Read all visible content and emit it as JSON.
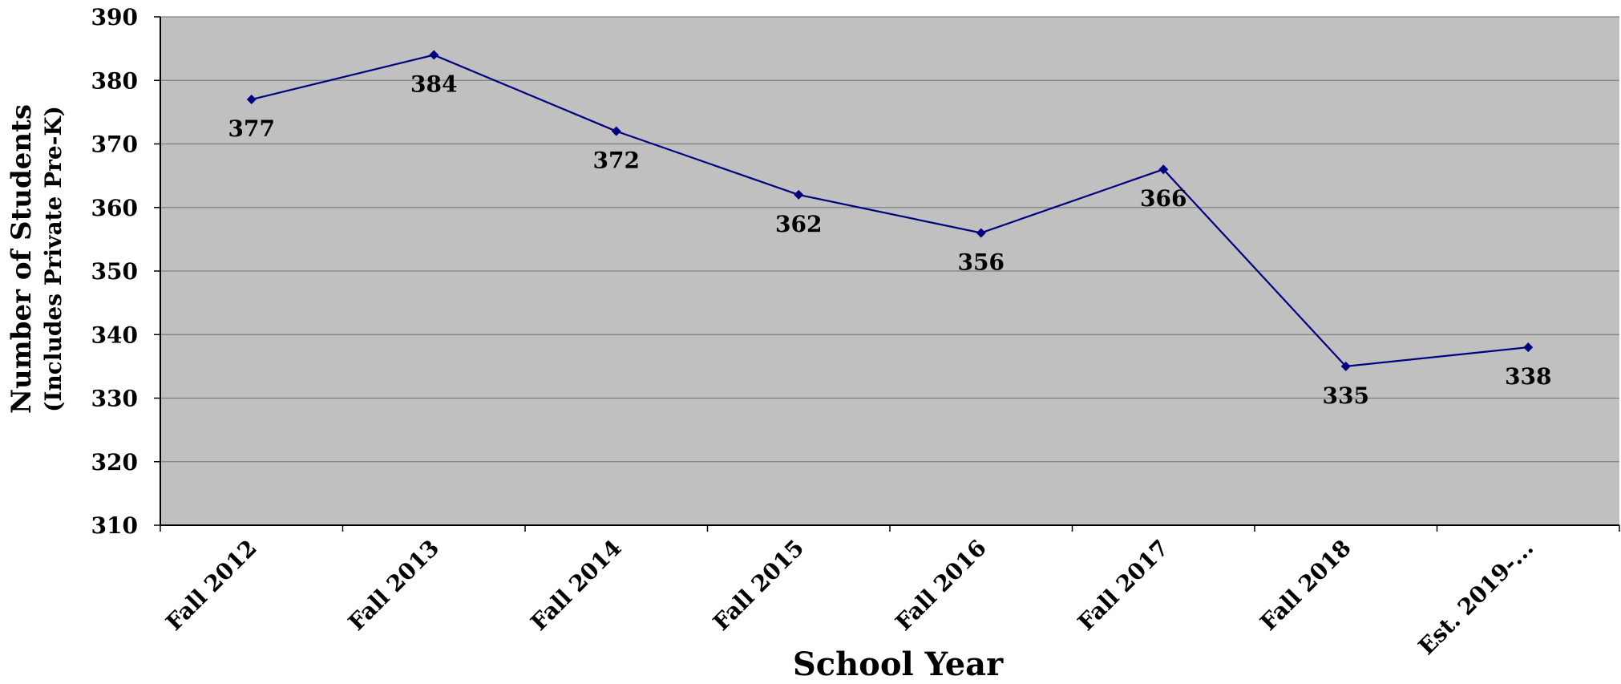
{
  "chart_data": {
    "type": "line",
    "categories": [
      "Fall 2012",
      "Fall 2013",
      "Fall 2014",
      "Fall 2015",
      "Fall 2016",
      "Fall 2017",
      "Fall 2018",
      "Est. 2019-..."
    ],
    "series": [
      {
        "values": [
          377,
          384,
          372,
          362,
          356,
          366,
          335,
          338
        ]
      }
    ],
    "xlabel": "School Year",
    "ylabel": "Number of Students",
    "ylabel_sub": "(Includes Private Pre-K)",
    "ylim": [
      310,
      390
    ],
    "yticks": [
      310,
      320,
      330,
      340,
      350,
      360,
      370,
      380,
      390
    ],
    "grid": true,
    "colors": {
      "line": "#000080",
      "plot_bg": "#c0c0c0",
      "grid": "#808080"
    },
    "marker": "diamond",
    "data_labels": true
  }
}
